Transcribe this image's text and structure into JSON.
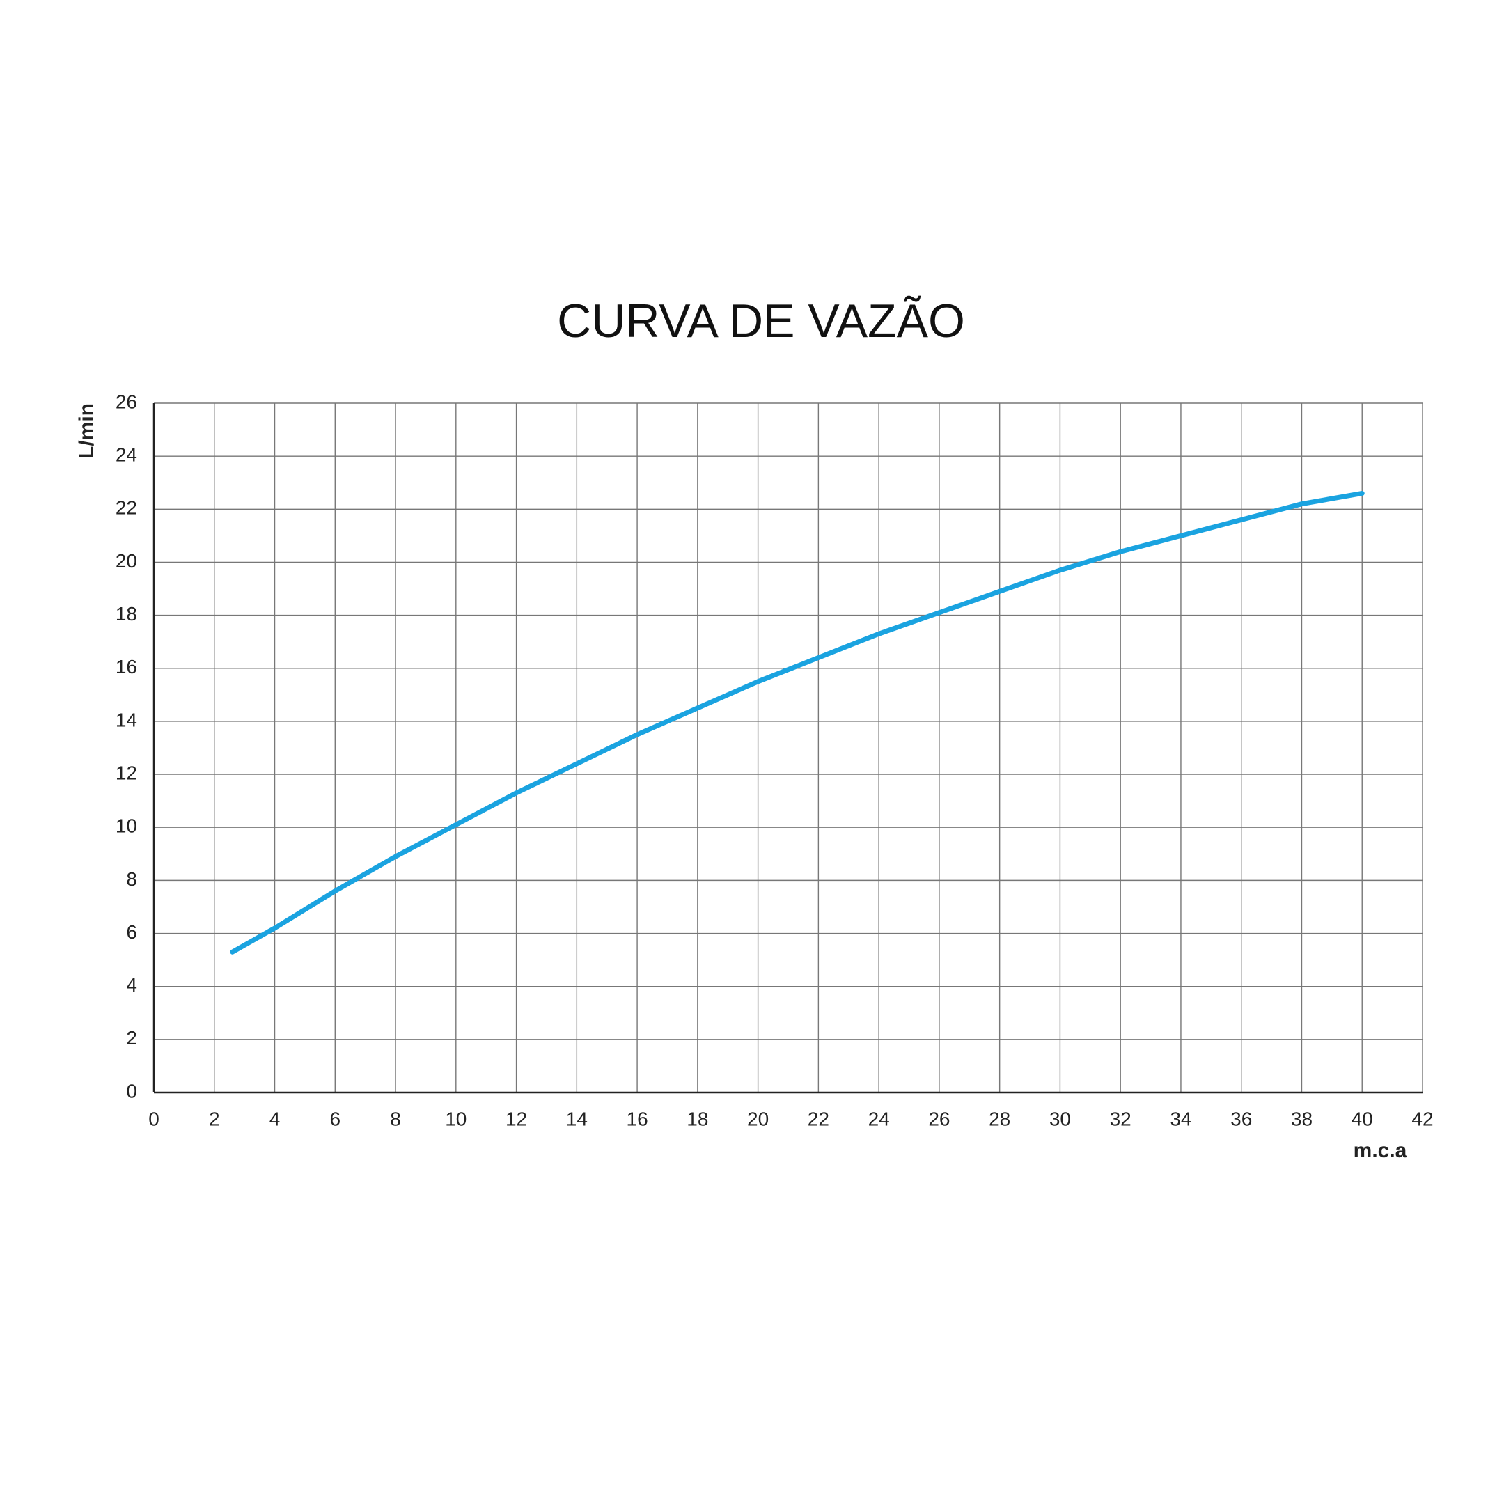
{
  "chart_data": {
    "type": "line",
    "title": "CURVA DE VAZÃO",
    "y_label": "L/min",
    "x_label": "m.c.a",
    "x": [
      2.6,
      4,
      6,
      8,
      10,
      12,
      14,
      16,
      18,
      20,
      22,
      24,
      26,
      28,
      30,
      32,
      34,
      36,
      38,
      40
    ],
    "values": [
      5.3,
      6.2,
      7.6,
      8.9,
      10.1,
      11.3,
      12.4,
      13.5,
      14.5,
      15.5,
      16.4,
      17.3,
      18.1,
      18.9,
      19.7,
      20.4,
      21.0,
      21.6,
      22.2,
      22.6
    ],
    "color": "#1aa3e0",
    "xlim": [
      0,
      42
    ],
    "xticks": [
      0,
      2,
      4,
      6,
      8,
      10,
      12,
      14,
      16,
      18,
      20,
      22,
      24,
      26,
      28,
      30,
      32,
      34,
      36,
      38,
      40,
      42
    ],
    "ylim": [
      0,
      26
    ],
    "yticks": [
      0,
      2,
      4,
      6,
      8,
      10,
      12,
      14,
      16,
      18,
      20,
      22,
      24,
      26
    ],
    "grid": true
  }
}
